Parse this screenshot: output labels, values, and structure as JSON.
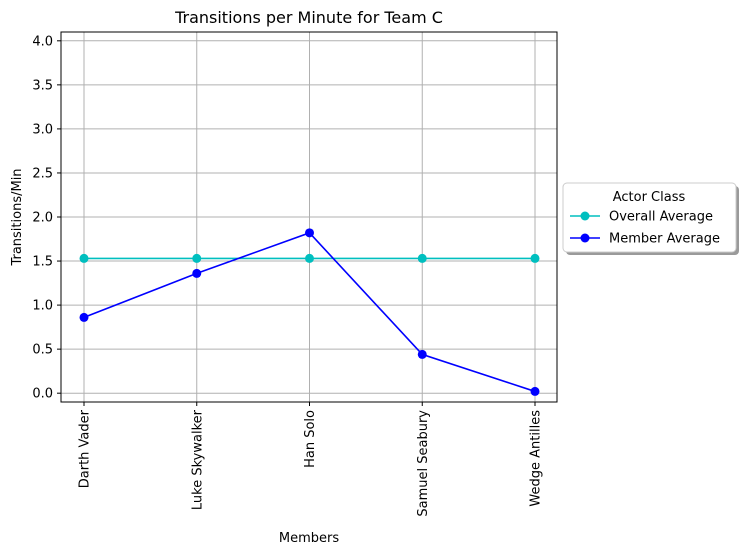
{
  "chart_data": {
    "type": "line",
    "title": "Transitions per Minute for Team C",
    "xlabel": "Members",
    "ylabel": "Transitions/Min",
    "categories": [
      "Darth Vader",
      "Luke Skywalker",
      "Han Solo",
      "Samuel Seabury",
      "Wedge Antilles"
    ],
    "yticks": [
      "0.0",
      "0.5",
      "1.0",
      "1.5",
      "2.0",
      "2.5",
      "3.0",
      "3.5",
      "4.0"
    ],
    "ylim": [
      -0.1,
      4.1
    ],
    "grid": true,
    "legend": {
      "title": "Actor Class",
      "placement": "outside-right"
    },
    "series": [
      {
        "name": "Overall Average",
        "color": "#00bfbf",
        "marker": "circle",
        "values": [
          1.53,
          1.53,
          1.53,
          1.53,
          1.53
        ]
      },
      {
        "name": "Member Average",
        "color": "#0000ff",
        "marker": "circle",
        "values": [
          0.86,
          1.36,
          1.82,
          0.44,
          0.02
        ]
      }
    ]
  }
}
